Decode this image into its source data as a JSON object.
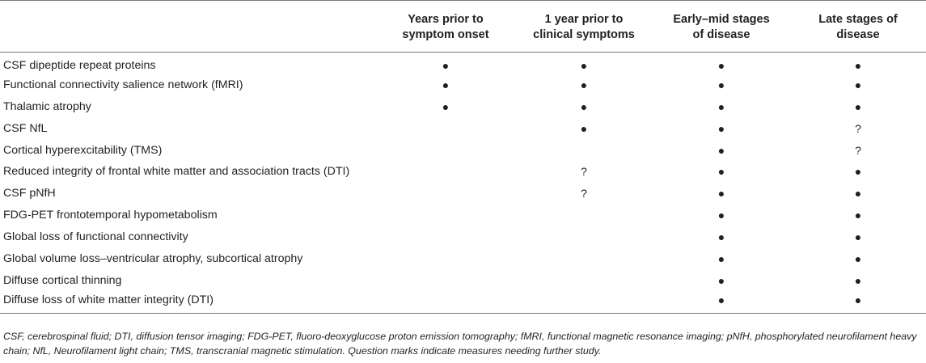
{
  "header": {
    "col0": "",
    "col1_line1": "Years prior to",
    "col1_line2": "symptom onset",
    "col2_line1": "1 year prior to",
    "col2_line2": "clinical symptoms",
    "col3_line1": "Early–mid stages",
    "col3_line2": "of disease",
    "col4_line1": "Late stages of",
    "col4_line2": "disease"
  },
  "rows": [
    {
      "label": "CSF dipeptide repeat proteins",
      "c1": "●",
      "c2": "●",
      "c3": "●",
      "c4": "●"
    },
    {
      "label": "Functional connectivity salience network (fMRI)",
      "c1": "●",
      "c2": "●",
      "c3": "●",
      "c4": "●"
    },
    {
      "label": "Thalamic atrophy",
      "c1": "●",
      "c2": "●",
      "c3": "●",
      "c4": "●"
    },
    {
      "label": "CSF NfL",
      "c1": "",
      "c2": "●",
      "c3": "●",
      "c4": "?"
    },
    {
      "label": "Cortical hyperexcitability (TMS)",
      "c1": "",
      "c2": "",
      "c3": "●",
      "c4": "?"
    },
    {
      "label": "Reduced integrity of frontal white matter and association tracts (DTI)",
      "c1": "",
      "c2": "?",
      "c3": "●",
      "c4": "●"
    },
    {
      "label": "CSF pNfH",
      "c1": "",
      "c2": "?",
      "c3": "●",
      "c4": "●"
    },
    {
      "label": "FDG-PET frontotemporal hypometabolism",
      "c1": "",
      "c2": "",
      "c3": "●",
      "c4": "●"
    },
    {
      "label": "Global loss of functional connectivity",
      "c1": "",
      "c2": "",
      "c3": "●",
      "c4": "●"
    },
    {
      "label": "Global volume loss–ventricular atrophy, subcortical atrophy",
      "c1": "",
      "c2": "",
      "c3": "●",
      "c4": "●"
    },
    {
      "label": "Diffuse cortical thinning",
      "c1": "",
      "c2": "",
      "c3": "●",
      "c4": "●"
    },
    {
      "label": "Diffuse loss of white matter integrity (DTI)",
      "c1": "",
      "c2": "",
      "c3": "●",
      "c4": "●"
    }
  ],
  "footnote": "CSF, cerebrospinal fluid; DTI, diffusion tensor imaging; FDG-PET, fluoro-deoxyglucose proton emission tomography; fMRI, functional magnetic resonance imaging; pNfH, phosphorylated neurofilament heavy chain; NfL, Neurofilament light chain; TMS, transcranial magnetic stimulation. Question marks indicate measures needing further study."
}
